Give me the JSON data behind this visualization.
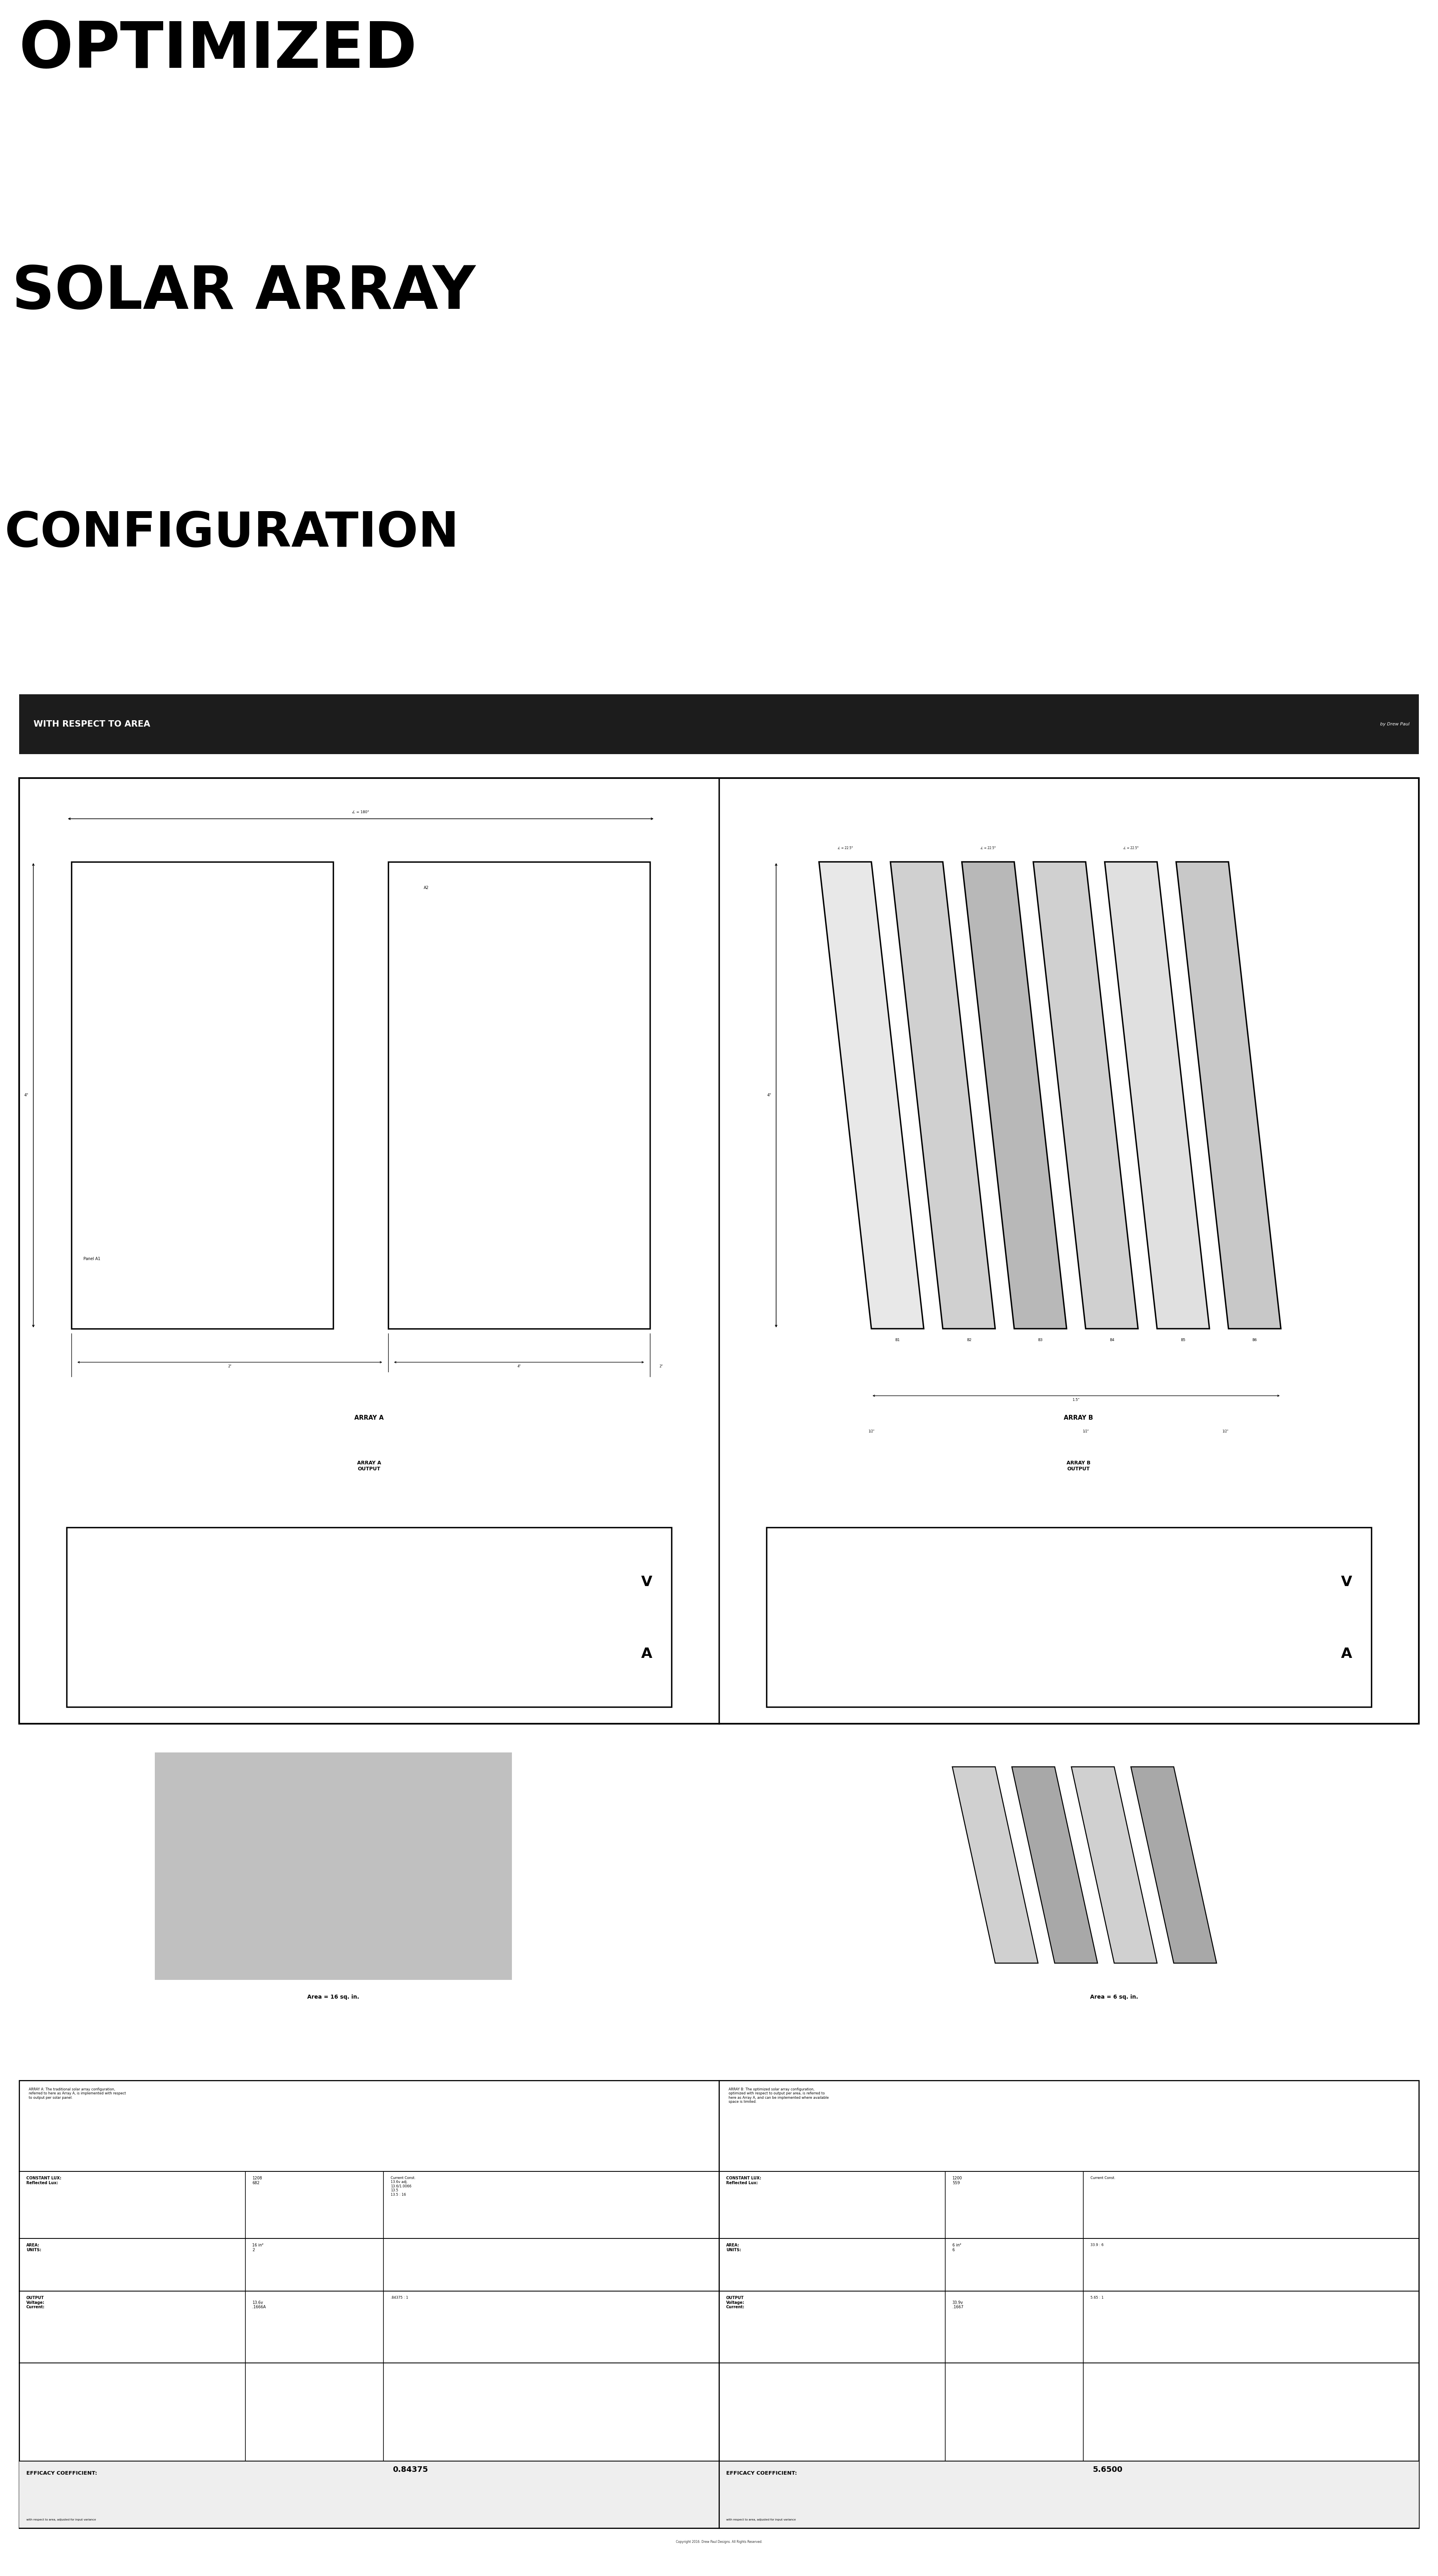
{
  "bg_color": "#ffffff",
  "title_line1": "OPTIMIZED",
  "title_line2": "SOLAR ARRAY",
  "title_line3": "CONFIGURATION",
  "subtitle_text": "WITH RESPECT TO AREA",
  "byline": "by Drew Paul",
  "array_a_label": "ARRAY A",
  "array_b_label": "ARRAY B",
  "array_a_output": "ARRAY A\nOUTPUT",
  "array_b_output": "ARRAY B\nOUTPUT",
  "panel_a1": "Panel A1",
  "panel_a2": "A2",
  "area_a_text": "Area = 16 sq. in.",
  "area_b_text": "Area = 6 sq. in.",
  "panel_b_labels": [
    "B1",
    "B2",
    "B3",
    "B4",
    "B5",
    "B6"
  ],
  "dim_angle_a": "∠ = 180°",
  "dim_height_4": "4\"",
  "dim_4in": "4\"",
  "dim_2in": "2\"",
  "dim_15": "1.5\"",
  "dim_half": "1/2\"",
  "dim_angle_b": "∠ = 22.5°",
  "output_v": "V",
  "output_a": "A",
  "colors": {
    "black": "#000000",
    "white": "#ffffff",
    "gray_panel": "#c0c0c0",
    "gray_b_light": "#d0d0d0",
    "gray_b_dark": "#a8a8a8",
    "subtitle_bg": "#1c1c1c"
  },
  "table": {
    "a_desc": "ARRAY A: The traditional solar array configuration,\nreferred to here as Array A, is implemented with respect\nto output per solar panel.",
    "b_desc": "ARRAY B: The optimized solar array configuration,\noptimized with respect to output per area, is referred to\nhere as Array A, and can be implemented where available\nspace is limited.",
    "rows": [
      {
        "a_label": "CONSTANT LUX:\nReflected Lux:",
        "a_val": "1208\n682",
        "a_side": "Current Const.\n13.6v adj.\n13.6/1.0066\n13.5\n13.5 : 16",
        "b_label": "CONSTANT LUX:\nReflected Lux:",
        "b_val": "1200\n559",
        "b_side": "Current Const."
      },
      {
        "a_label": "AREA:\nUNITS:",
        "a_val": "16 in²\n2",
        "a_side": "",
        "b_label": "AREA:\nUNITS:",
        "b_val": "6 in²\n6",
        "b_side": "33.9 : 6"
      },
      {
        "a_label": "OUTPUT\nVoltage:\nCurrent:",
        "a_val": "\n13.6v\n.1666A",
        "a_side": ".84375 : 1",
        "b_label": "OUTPUT\nVoltage:\nCurrent:",
        "b_val": "\n33.9v\n.1667",
        "b_side": "5.65 : 1"
      }
    ],
    "efficacy_a_label": "EFFICACY COEFFICIENT:",
    "efficacy_a_val": "0.84375",
    "efficacy_b_label": "EFFICACY COEFFICIENT:",
    "efficacy_b_val": "5.6500",
    "efficacy_sub": "with respect to area, adjusted for input variance",
    "copyright": "Copyright 2016. Drew Paul Designs. All Rights Reserved."
  }
}
